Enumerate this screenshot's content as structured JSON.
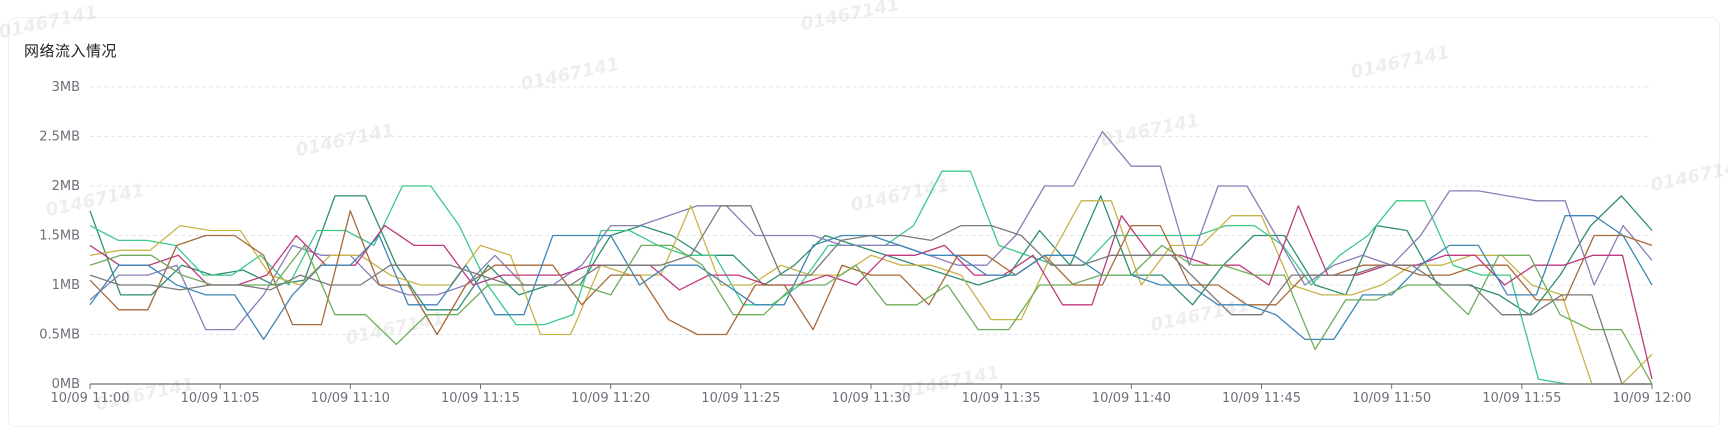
{
  "watermark": "01467141",
  "chart_data": {
    "type": "line",
    "title": "网络流入情况",
    "xlabel": "",
    "ylabel": "",
    "ylim": [
      0,
      3
    ],
    "y_unit": "MB",
    "y_ticks": [
      "0MB",
      "0.5MB",
      "1MB",
      "1.5MB",
      "2MB",
      "2.5MB",
      "3MB"
    ],
    "x_ticks": [
      "10/09 11:00",
      "10/09 11:05",
      "10/09 11:10",
      "10/09 11:15",
      "10/09 11:20",
      "10/09 11:25",
      "10/09 11:30",
      "10/09 11:35",
      "10/09 11:40",
      "10/09 11:45",
      "10/09 11:50",
      "10/09 11:55",
      "10/09 12:00"
    ],
    "x_range_minutes": [
      0,
      60
    ],
    "grid": "horizontal dashed",
    "legend": "none",
    "series": [
      {
        "color": "#2f8f6f",
        "values": [
          1.75,
          0.9,
          0.9,
          1.2,
          1.1,
          1.15,
          1.0,
          1.05,
          1.9,
          1.9,
          1.2,
          0.75,
          0.75,
          1.2,
          0.9,
          1.0,
          1.0,
          1.5,
          1.6,
          1.5,
          1.3,
          1.3,
          1.0,
          1.2,
          1.5,
          1.4,
          1.3,
          1.2,
          1.1,
          1.0,
          1.1,
          1.55,
          1.2,
          1.9,
          1.1,
          1.1,
          0.8,
          1.2,
          1.5,
          1.5,
          1.0,
          0.9,
          1.6,
          1.55,
          1.0,
          1.0,
          0.9,
          0.7,
          1.1,
          1.6,
          1.9,
          1.55
        ]
      },
      {
        "color": "#3cc98a",
        "values": [
          1.6,
          1.45,
          1.45,
          1.4,
          1.1,
          1.1,
          1.3,
          1.0,
          1.55,
          1.55,
          1.4,
          2.0,
          2.0,
          1.6,
          1.0,
          0.6,
          0.6,
          0.7,
          1.55,
          1.55,
          1.4,
          1.3,
          1.3,
          0.8,
          0.8,
          1.0,
          1.4,
          1.4,
          1.4,
          1.6,
          2.15,
          2.15,
          1.4,
          1.3,
          1.2,
          1.2,
          1.5,
          1.5,
          1.5,
          1.5,
          1.6,
          1.6,
          1.4,
          1.0,
          1.3,
          1.5,
          1.85,
          1.85,
          1.2,
          1.1,
          1.1,
          0.05,
          0.0,
          0.0,
          0.0,
          0.0
        ]
      },
      {
        "color": "#8a7fb8",
        "values": [
          0.85,
          1.1,
          1.1,
          1.2,
          0.55,
          0.55,
          0.9,
          1.4,
          1.3,
          1.3,
          1.0,
          0.9,
          0.9,
          1.0,
          1.3,
          1.0,
          1.0,
          1.2,
          1.6,
          1.6,
          1.7,
          1.8,
          1.8,
          1.5,
          1.5,
          1.5,
          1.4,
          1.4,
          1.4,
          1.3,
          1.2,
          1.2,
          1.5,
          2.0,
          2.0,
          2.55,
          2.2,
          2.2,
          1.2,
          2.0,
          2.0,
          1.5,
          1.0,
          1.2,
          1.3,
          1.2,
          1.5,
          1.95,
          1.95,
          1.9,
          1.85,
          1.85,
          1.0,
          1.6,
          1.25
        ]
      },
      {
        "color": "#c8b44a",
        "values": [
          1.3,
          1.35,
          1.35,
          1.6,
          1.55,
          1.55,
          1.1,
          1.0,
          1.3,
          1.3,
          1.1,
          1.0,
          1.0,
          1.4,
          1.3,
          0.5,
          0.5,
          1.2,
          1.1,
          1.1,
          1.8,
          1.0,
          1.0,
          1.2,
          1.1,
          1.1,
          1.3,
          1.2,
          1.2,
          1.1,
          0.65,
          0.65,
          1.3,
          1.85,
          1.85,
          1.0,
          1.4,
          1.4,
          1.7,
          1.7,
          1.0,
          0.9,
          0.9,
          1.0,
          1.2,
          1.2,
          1.3,
          1.3,
          1.0,
          0.9,
          0.0,
          0.0,
          0.3
        ]
      },
      {
        "color": "#c0397f",
        "values": [
          1.4,
          1.2,
          1.2,
          1.3,
          1.0,
          1.0,
          1.1,
          1.5,
          1.2,
          1.2,
          1.6,
          1.4,
          1.4,
          1.0,
          1.1,
          1.1,
          1.1,
          1.2,
          1.2,
          1.2,
          0.95,
          1.1,
          1.1,
          1.0,
          1.0,
          1.1,
          1.0,
          1.3,
          1.3,
          1.4,
          1.1,
          1.1,
          1.3,
          0.8,
          0.8,
          1.7,
          1.3,
          1.3,
          1.2,
          1.2,
          1.0,
          1.8,
          1.1,
          1.1,
          1.2,
          1.2,
          1.3,
          1.3,
          1.0,
          1.2,
          1.2,
          1.3,
          1.3,
          0.05
        ]
      },
      {
        "color": "#a86a3a",
        "values": [
          1.05,
          0.75,
          0.75,
          1.4,
          1.5,
          1.5,
          1.3,
          0.6,
          0.6,
          1.75,
          1.0,
          1.0,
          0.5,
          1.0,
          1.2,
          1.2,
          1.2,
          0.8,
          1.1,
          1.1,
          0.65,
          0.5,
          0.5,
          1.0,
          1.0,
          0.55,
          1.2,
          1.1,
          1.1,
          0.8,
          1.3,
          1.3,
          1.1,
          1.3,
          1.0,
          1.0,
          1.6,
          1.6,
          1.0,
          1.0,
          0.8,
          0.8,
          1.1,
          1.1,
          1.2,
          1.2,
          1.1,
          1.1,
          1.2,
          1.2,
          0.85,
          0.85,
          1.5,
          1.5,
          1.4
        ]
      },
      {
        "color": "#3f86b8",
        "values": [
          0.8,
          1.2,
          1.2,
          1.0,
          0.9,
          0.9,
          0.45,
          0.9,
          1.2,
          1.2,
          1.5,
          0.8,
          0.8,
          1.2,
          0.7,
          0.7,
          1.5,
          1.5,
          1.5,
          1.0,
          1.2,
          1.2,
          1.0,
          0.8,
          0.8,
          1.4,
          1.5,
          1.5,
          1.4,
          1.3,
          1.3,
          1.1,
          1.1,
          1.3,
          1.3,
          1.1,
          1.1,
          1.0,
          1.0,
          0.8,
          0.8,
          0.7,
          0.45,
          0.45,
          0.9,
          0.9,
          1.2,
          1.4,
          1.4,
          0.9,
          0.9,
          1.7,
          1.7,
          1.5,
          1.0
        ]
      },
      {
        "color": "#6fae5a",
        "values": [
          1.2,
          1.3,
          1.3,
          1.1,
          1.0,
          1.0,
          1.0,
          1.4,
          0.7,
          0.7,
          0.4,
          0.7,
          0.7,
          1.0,
          1.0,
          1.0,
          1.0,
          0.9,
          1.4,
          1.4,
          1.2,
          0.7,
          0.7,
          1.0,
          1.0,
          1.2,
          0.8,
          0.8,
          1.0,
          0.55,
          0.55,
          1.0,
          1.0,
          1.1,
          1.1,
          1.4,
          1.2,
          1.2,
          1.1,
          1.1,
          0.35,
          0.85,
          0.85,
          1.0,
          1.0,
          0.7,
          1.3,
          1.3,
          0.7,
          0.55,
          0.55,
          0.0
        ]
      },
      {
        "color": "#7a7a7a",
        "values": [
          1.1,
          1.0,
          1.0,
          0.95,
          1.0,
          1.0,
          0.95,
          1.1,
          1.0,
          1.0,
          1.2,
          1.2,
          1.2,
          1.1,
          1.0,
          1.0,
          1.0,
          1.2,
          1.2,
          1.2,
          1.3,
          1.8,
          1.8,
          1.1,
          1.1,
          1.45,
          1.5,
          1.5,
          1.45,
          1.6,
          1.6,
          1.5,
          1.2,
          1.2,
          1.3,
          1.3,
          1.3,
          1.0,
          0.7,
          0.7,
          1.1,
          1.1,
          1.1,
          1.2,
          1.2,
          1.0,
          1.0,
          0.7,
          0.7,
          0.9,
          0.9,
          0.0,
          0.0
        ]
      }
    ]
  }
}
